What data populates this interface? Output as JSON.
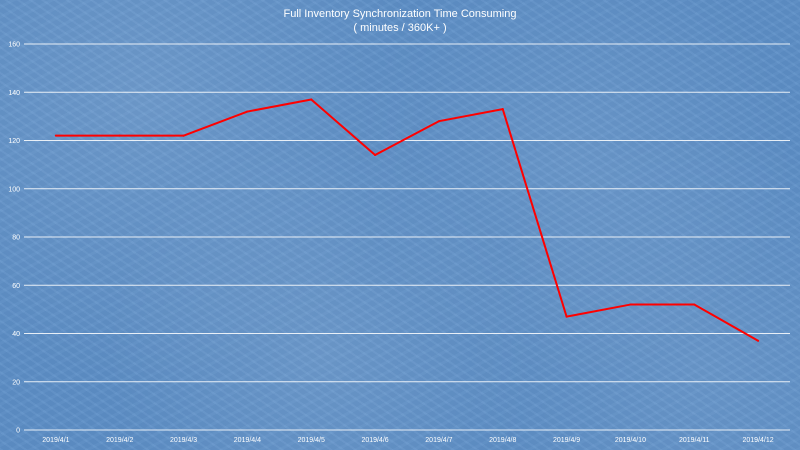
{
  "chart_data": {
    "type": "line",
    "title": "Full Inventory  Synchronization Time Consuming",
    "subtitle": "( minutes / 360K+ )",
    "categories": [
      "2019/4/1",
      "2019/4/2",
      "2019/4/3",
      "2019/4/4",
      "2019/4/5",
      "2019/4/6",
      "2019/4/7",
      "2019/4/8",
      "2019/4/9",
      "2019/4/10",
      "2019/4/11",
      "2019/4/12"
    ],
    "series": [
      {
        "values": [
          122,
          122,
          122,
          132,
          137,
          114,
          128,
          133,
          47,
          52,
          52,
          37
        ]
      }
    ],
    "yticks": [
      0,
      20,
      40,
      60,
      80,
      100,
      120,
      140,
      160
    ],
    "ylim": [
      0,
      160
    ],
    "xlabel": "",
    "ylabel": "",
    "grid": "horizontal",
    "line_color": "#ff0000",
    "legend": "none"
  }
}
